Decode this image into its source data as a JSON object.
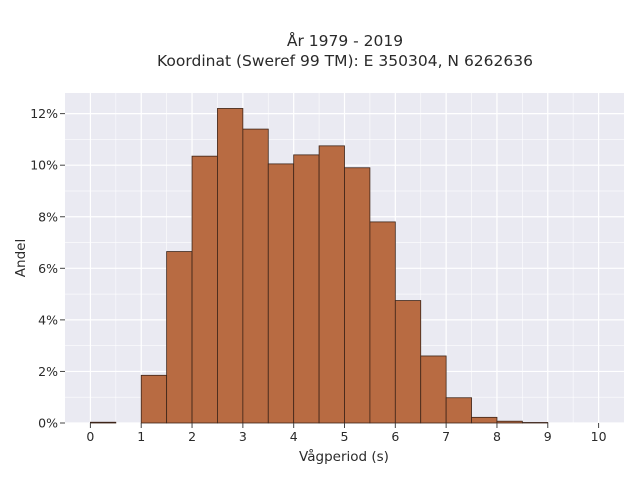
{
  "chart_data": {
    "type": "bar",
    "title_line1": "År 1979 - 2019",
    "title_line2": "Koordinat (Sweref 99 TM): E 350304, N 6262636",
    "xlabel": "Vågperiod (s)",
    "ylabel": "Andel",
    "xlim": [
      -0.5,
      10.5
    ],
    "ylim": [
      0,
      12.8
    ],
    "x_ticks": [
      0,
      1,
      2,
      3,
      4,
      5,
      6,
      7,
      8,
      9,
      10
    ],
    "y_ticks": [
      0,
      2,
      4,
      6,
      8,
      10,
      12
    ],
    "y_tick_suffix": "%",
    "bin_width": 0.5,
    "bins": [
      {
        "x0": 0.0,
        "value": 0.03
      },
      {
        "x0": 0.5,
        "value": 0.0
      },
      {
        "x0": 1.0,
        "value": 1.85
      },
      {
        "x0": 1.5,
        "value": 6.65
      },
      {
        "x0": 2.0,
        "value": 10.35
      },
      {
        "x0": 2.5,
        "value": 12.2
      },
      {
        "x0": 3.0,
        "value": 11.4
      },
      {
        "x0": 3.5,
        "value": 10.05
      },
      {
        "x0": 4.0,
        "value": 10.4
      },
      {
        "x0": 4.5,
        "value": 10.75
      },
      {
        "x0": 5.0,
        "value": 9.9
      },
      {
        "x0": 5.5,
        "value": 7.8
      },
      {
        "x0": 6.0,
        "value": 4.75
      },
      {
        "x0": 6.5,
        "value": 2.6
      },
      {
        "x0": 7.0,
        "value": 0.98
      },
      {
        "x0": 7.5,
        "value": 0.22
      },
      {
        "x0": 8.0,
        "value": 0.07
      },
      {
        "x0": 8.5,
        "value": 0.02
      }
    ],
    "grid": true,
    "colors": {
      "bar_fill": "#b86b42",
      "bar_edge": "#3d2418",
      "plot_background": "#eaeaf2",
      "grid": "#ffffff"
    }
  }
}
